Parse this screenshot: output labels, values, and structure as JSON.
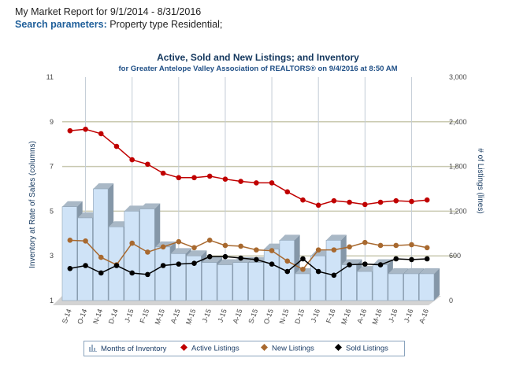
{
  "header": {
    "report_title": "My Market Report for 9/1/2014 - 8/31/2016",
    "search_label": "Search parameters:",
    "search_value": " Property type Residential;"
  },
  "chart_data": {
    "type": "bar",
    "title": "Active, Sold and New Listings; and Inventory",
    "subtitle": "for Greater Antelope Valley Association of REALTORS® on 9/4/2016 at 8:50 AM",
    "ylabel": "Inventory at Rate of Sales (columns)",
    "y2label": "# of Listings (lines)",
    "ylim": [
      1,
      11
    ],
    "y2lim": [
      0,
      3000
    ],
    "yticks": [
      "1",
      "3",
      "5",
      "7",
      "9",
      "11"
    ],
    "y2ticks": [
      "0",
      "600",
      "1,200",
      "1,800",
      "2,400",
      "3,000"
    ],
    "grid": true,
    "legend_position": "bottom",
    "categories": [
      "S-14",
      "O-14",
      "N-14",
      "D-14",
      "J-15",
      "F-15",
      "M-15",
      "A-15",
      "M-15",
      "J-15",
      "J-15",
      "A-15",
      "S-15",
      "O-15",
      "N-15",
      "D-15",
      "J-16",
      "F-16",
      "M-16",
      "A-16",
      "M-16",
      "J-16",
      "J-16",
      "A-16"
    ],
    "series": [
      {
        "name": "Months of Inventory",
        "type": "bar",
        "axis": "left",
        "color": "#cfe3f7",
        "values": [
          5.2,
          4.7,
          6.0,
          4.3,
          5.0,
          5.1,
          3.4,
          3.1,
          3.0,
          2.7,
          2.6,
          2.7,
          2.7,
          3.3,
          3.7,
          2.2,
          3.0,
          3.7,
          2.6,
          2.3,
          2.6,
          2.2,
          2.2,
          2.2
        ]
      },
      {
        "name": "Active Listings",
        "type": "line",
        "axis": "right",
        "color": "#c00000",
        "values": [
          2280,
          2300,
          2240,
          2070,
          1890,
          1830,
          1710,
          1650,
          1650,
          1670,
          1630,
          1600,
          1580,
          1580,
          1460,
          1350,
          1280,
          1340,
          1320,
          1290,
          1320,
          1340,
          1330,
          1350
        ]
      },
      {
        "name": "New Listings",
        "type": "line",
        "axis": "right",
        "color": "#a8692f",
        "values": [
          810,
          800,
          580,
          480,
          770,
          650,
          720,
          790,
          710,
          810,
          740,
          730,
          680,
          670,
          530,
          420,
          680,
          680,
          720,
          780,
          740,
          740,
          750,
          710
        ]
      },
      {
        "name": "Sold Listings",
        "type": "line",
        "axis": "right",
        "color": "#000000",
        "values": [
          430,
          470,
          370,
          470,
          370,
          350,
          470,
          490,
          500,
          590,
          590,
          570,
          550,
          490,
          390,
          560,
          390,
          340,
          480,
          490,
          480,
          560,
          550,
          560
        ]
      }
    ]
  },
  "legend": {
    "items": [
      {
        "label": "Months of Inventory",
        "icon": "bar-chart-icon"
      },
      {
        "label": "Active Listings",
        "icon": "diamond-marker"
      },
      {
        "label": "New Listings",
        "icon": "diamond-marker"
      },
      {
        "label": "Sold Listings",
        "icon": "diamond-marker"
      }
    ]
  }
}
